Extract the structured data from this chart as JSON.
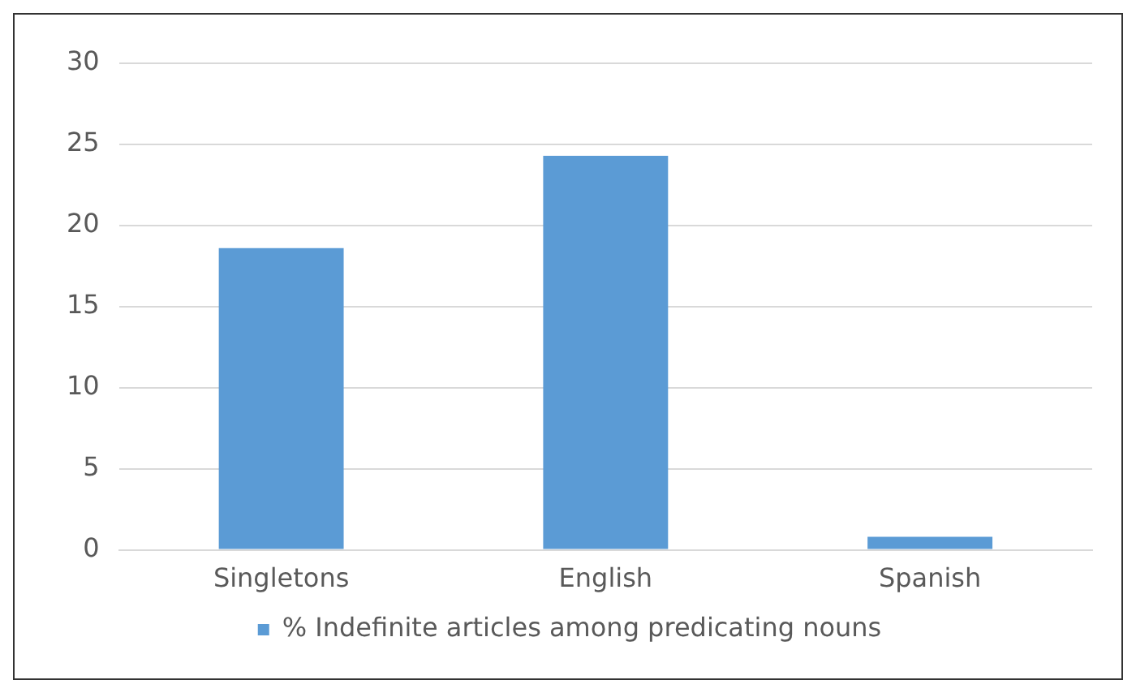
{
  "chart_data": {
    "type": "bar",
    "categories": [
      "Singletons",
      "English",
      "Spanish"
    ],
    "series": [
      {
        "name": "% Indefinite articles among predicating nouns",
        "color": "#5b9bd5",
        "values": [
          18.6,
          24.3,
          0.8
        ]
      }
    ],
    "ylim": [
      0,
      30
    ],
    "yticks": [
      0,
      5,
      10,
      15,
      20,
      25,
      30
    ],
    "grid": "y",
    "legend": "bottom"
  }
}
